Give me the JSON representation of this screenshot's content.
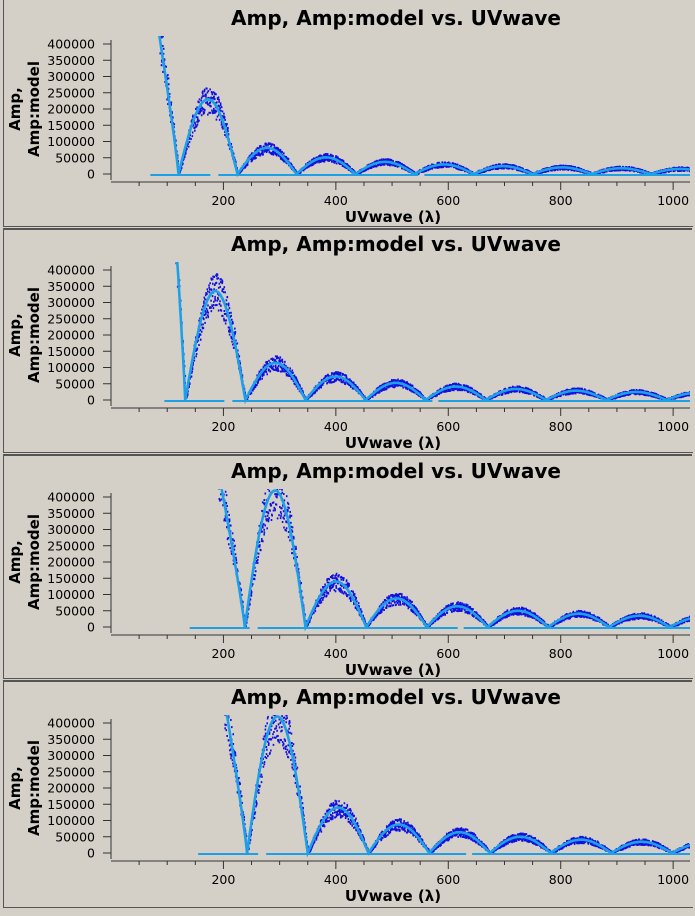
{
  "chart_data": [
    {
      "type": "scatter",
      "title": "Amp, Amp:model vs. UVwave",
      "xlabel": "UVwave (λ)",
      "ylabel": [
        "Amp,",
        "Amp:model"
      ],
      "xlim": [
        0,
        1030
      ],
      "ylim": [
        0,
        420000
      ],
      "xticks": [
        200,
        400,
        600,
        800,
        1000
      ],
      "yticks": [
        0,
        50000,
        100000,
        150000,
        200000,
        250000,
        300000,
        350000,
        400000
      ],
      "model": {
        "first_peak_uv": 170,
        "lobe_width": 105,
        "first_zero_uv": 120,
        "peak_amp": 230000,
        "decay": 1.15,
        "start_uv": 85
      },
      "series": [
        {
          "name": "",
          "role": "data",
          "color": "#1010e0"
        },
        {
          "name": "",
          "role": "model",
          "color": "#1ea0e6"
        }
      ]
    },
    {
      "type": "scatter",
      "title": "Amp, Amp:model vs. UVwave",
      "xlabel": "UVwave (λ)",
      "ylabel": [
        "Amp,",
        "Amp:model"
      ],
      "xlim": [
        0,
        1030
      ],
      "ylim": [
        0,
        420000
      ],
      "xticks": [
        200,
        400,
        600,
        800,
        1000
      ],
      "yticks": [
        0,
        50000,
        100000,
        150000,
        200000,
        250000,
        300000,
        350000,
        400000
      ],
      "model": {
        "first_peak_uv": 175,
        "lobe_width": 107,
        "first_zero_uv": 132,
        "peak_amp": 335000,
        "decay": 1.2,
        "start_uv": 110
      },
      "series": [
        {
          "name": "",
          "role": "data",
          "color": "#1010e0"
        },
        {
          "name": "",
          "role": "model",
          "color": "#1ea0e6"
        }
      ]
    },
    {
      "type": "scatter",
      "title": "Amp, Amp:model vs. UVwave",
      "xlabel": "UVwave (λ)",
      "ylabel": [
        "Amp,",
        "Amp:model"
      ],
      "xlim": [
        0,
        1030
      ],
      "ylim": [
        0,
        420000
      ],
      "xticks": [
        200,
        400,
        600,
        800,
        1000
      ],
      "yticks": [
        0,
        50000,
        100000,
        150000,
        200000,
        250000,
        300000,
        350000,
        400000
      ],
      "model": {
        "first_peak_uv": 180,
        "lobe_width": 108,
        "first_zero_uv": 238,
        "peak_amp": 420000,
        "decay": 1.25,
        "start_uv": 155
      },
      "series": [
        {
          "name": "",
          "role": "data",
          "color": "#1010e0"
        },
        {
          "name": "",
          "role": "model",
          "color": "#1ea0e6"
        }
      ]
    },
    {
      "type": "scatter",
      "title": "Amp, Amp:model vs. UVwave",
      "xlabel": "UVwave (λ)",
      "ylabel": [
        "Amp,",
        "Amp:model"
      ],
      "xlim": [
        0,
        1030
      ],
      "ylim": [
        0,
        420000
      ],
      "xticks": [
        200,
        400,
        600,
        800,
        1000
      ],
      "yticks": [
        0,
        50000,
        100000,
        150000,
        200000,
        250000,
        300000,
        350000,
        400000
      ],
      "model": {
        "first_peak_uv": 195,
        "lobe_width": 108,
        "first_zero_uv": 242,
        "peak_amp": 420000,
        "decay": 1.25,
        "start_uv": 170
      },
      "series": [
        {
          "name": "",
          "role": "data",
          "color": "#1010e0"
        },
        {
          "name": "",
          "role": "model",
          "color": "#1ea0e6"
        }
      ]
    }
  ]
}
